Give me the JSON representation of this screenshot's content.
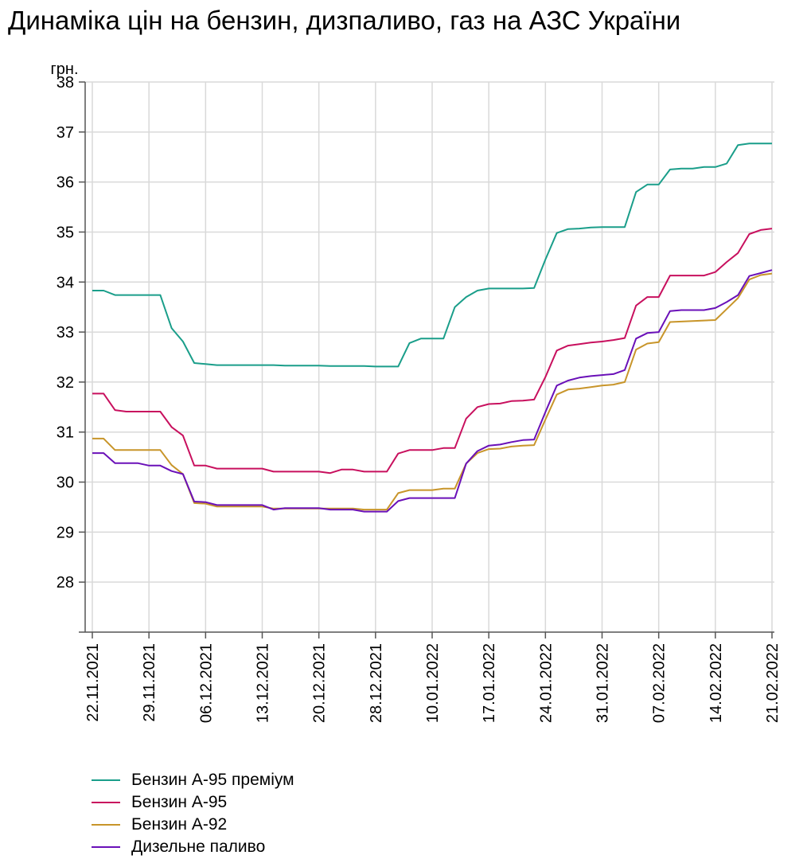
{
  "title": "Динаміка цін на бензин, дизпаливо, газ на АЗС України",
  "chart_data": {
    "type": "line",
    "title": "Динаміка цін на бензин, дизпаливо, газ на АЗС України",
    "ylabel": "грн.",
    "xlabel": "",
    "ylim": [
      27,
      38
    ],
    "yticks": [
      28,
      29,
      30,
      31,
      32,
      33,
      34,
      35,
      36,
      37,
      38
    ],
    "grid": true,
    "legend_position": "bottom-left",
    "x": [
      "22.11.2021",
      "23.11.2021",
      "24.11.2021",
      "25.11.2021",
      "26.11.2021",
      "29.11.2021",
      "30.11.2021",
      "01.12.2021",
      "02.12.2021",
      "03.12.2021",
      "06.12.2021",
      "07.12.2021",
      "08.12.2021",
      "09.12.2021",
      "10.12.2021",
      "13.12.2021",
      "14.12.2021",
      "15.12.2021",
      "16.12.2021",
      "17.12.2021",
      "20.12.2021",
      "21.12.2021",
      "22.12.2021",
      "23.12.2021",
      "24.12.2021",
      "28.12.2021",
      "29.12.2021",
      "30.12.2021",
      "04.01.2022",
      "05.01.2022",
      "10.01.2022",
      "11.01.2022",
      "12.01.2022",
      "13.01.2022",
      "14.01.2022",
      "17.01.2022",
      "18.01.2022",
      "19.01.2022",
      "20.01.2022",
      "21.01.2022",
      "24.01.2022",
      "25.01.2022",
      "26.01.2022",
      "27.01.2022",
      "28.01.2022",
      "31.01.2022",
      "01.02.2022",
      "02.02.2022",
      "03.02.2022",
      "04.02.2022",
      "07.02.2022",
      "08.02.2022",
      "09.02.2022",
      "10.02.2022",
      "11.02.2022",
      "14.02.2022",
      "15.02.2022",
      "16.02.2022",
      "17.02.2022",
      "18.02.2022",
      "21.02.2022"
    ],
    "x_tick_labels": [
      "22.11.2021",
      "29.11.2021",
      "06.12.2021",
      "13.12.2021",
      "20.12.2021",
      "28.12.2021",
      "10.01.2022",
      "17.01.2022",
      "24.01.2022",
      "31.01.2022",
      "07.02.2022",
      "14.02.2022",
      "21.02.2022"
    ],
    "x_tick_indices": [
      0,
      5,
      10,
      15,
      20,
      25,
      30,
      35,
      40,
      45,
      50,
      55,
      60
    ],
    "series": [
      {
        "name": "Бензин А-95 преміум",
        "color": "#1a9e8a",
        "values": [
          33.83,
          33.83,
          33.74,
          33.74,
          33.74,
          33.74,
          33.74,
          33.08,
          32.81,
          32.38,
          32.36,
          32.34,
          32.34,
          32.34,
          32.34,
          32.34,
          32.34,
          32.33,
          32.33,
          32.33,
          32.33,
          32.32,
          32.32,
          32.32,
          32.32,
          32.31,
          32.31,
          32.31,
          32.78,
          32.87,
          32.87,
          32.87,
          33.5,
          33.7,
          33.83,
          33.87,
          33.87,
          33.87,
          33.87,
          33.88,
          34.45,
          34.98,
          35.06,
          35.07,
          35.09,
          35.1,
          35.1,
          35.1,
          35.8,
          35.95,
          35.95,
          36.25,
          36.27,
          36.27,
          36.3,
          36.3,
          36.37,
          36.74,
          36.77,
          36.77,
          36.77
        ]
      },
      {
        "name": "Бензин А-95",
        "color": "#c8105e",
        "values": [
          31.77,
          31.77,
          31.44,
          31.41,
          31.41,
          31.41,
          31.41,
          31.1,
          30.93,
          30.33,
          30.33,
          30.27,
          30.27,
          30.27,
          30.27,
          30.27,
          30.21,
          30.21,
          30.21,
          30.21,
          30.21,
          30.18,
          30.25,
          30.25,
          30.21,
          30.21,
          30.21,
          30.57,
          30.64,
          30.64,
          30.64,
          30.68,
          30.68,
          31.27,
          31.5,
          31.56,
          31.57,
          31.62,
          31.63,
          31.65,
          32.1,
          32.63,
          32.73,
          32.76,
          32.79,
          32.81,
          32.84,
          32.88,
          33.53,
          33.7,
          33.7,
          34.13,
          34.13,
          34.13,
          34.13,
          34.2,
          34.4,
          34.58,
          34.96,
          35.04,
          35.07
        ]
      },
      {
        "name": "Бензин А-92",
        "color": "#c8952a",
        "values": [
          30.87,
          30.87,
          30.64,
          30.64,
          30.64,
          30.64,
          30.64,
          30.34,
          30.16,
          29.58,
          29.57,
          29.51,
          29.51,
          29.51,
          29.51,
          29.51,
          29.47,
          29.47,
          29.47,
          29.47,
          29.47,
          29.47,
          29.47,
          29.47,
          29.45,
          29.45,
          29.45,
          29.78,
          29.84,
          29.84,
          29.84,
          29.87,
          29.87,
          30.37,
          30.58,
          30.66,
          30.67,
          30.71,
          30.73,
          30.74,
          31.25,
          31.75,
          31.85,
          31.87,
          31.9,
          31.93,
          31.95,
          32.0,
          32.65,
          32.77,
          32.8,
          33.2,
          33.21,
          33.22,
          33.23,
          33.24,
          33.46,
          33.68,
          34.05,
          34.14,
          34.17
        ]
      },
      {
        "name": "Дизельне паливо",
        "color": "#6a10b8",
        "values": [
          30.58,
          30.58,
          30.38,
          30.38,
          30.38,
          30.33,
          30.33,
          30.22,
          30.16,
          29.61,
          29.6,
          29.54,
          29.54,
          29.54,
          29.54,
          29.54,
          29.45,
          29.48,
          29.48,
          29.48,
          29.48,
          29.45,
          29.45,
          29.45,
          29.41,
          29.41,
          29.41,
          29.62,
          29.68,
          29.68,
          29.68,
          29.68,
          29.68,
          30.37,
          30.62,
          30.73,
          30.75,
          30.8,
          30.84,
          30.85,
          31.4,
          31.93,
          32.03,
          32.09,
          32.12,
          32.14,
          32.16,
          32.24,
          32.87,
          32.98,
          33.0,
          33.42,
          33.44,
          33.44,
          33.44,
          33.48,
          33.6,
          33.74,
          34.12,
          34.18,
          34.24
        ]
      }
    ]
  }
}
